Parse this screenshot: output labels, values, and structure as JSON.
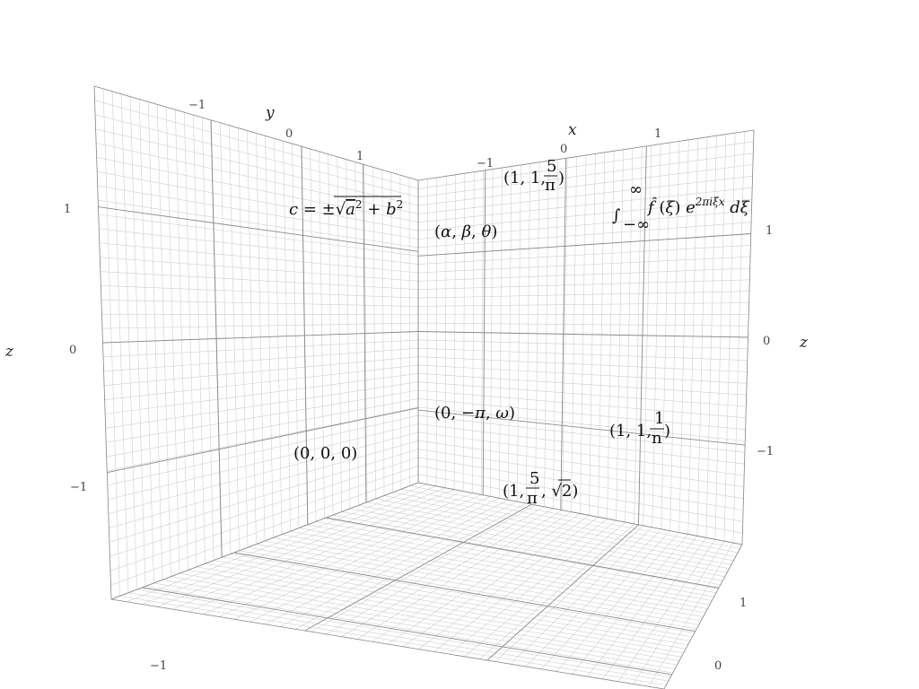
{
  "chart_data": {
    "type": "scatter",
    "projection": "3d",
    "title": "",
    "axes": {
      "x": {
        "label": "x",
        "ticks": [
          "−1",
          "0",
          "1"
        ],
        "range": [
          -1.5,
          1.5
        ]
      },
      "y": {
        "label": "y",
        "ticks": [
          "−1",
          "0",
          "1"
        ],
        "range": [
          -1.5,
          1.5
        ]
      },
      "z": {
        "label": "z",
        "ticks": [
          "1",
          "0",
          "−1"
        ],
        "range": [
          -1.5,
          1.5
        ]
      }
    },
    "floor_ticks": [
      "−1",
      "1",
      "0"
    ],
    "grid": true,
    "grid_color": "#cfcfcf",
    "major_grid_color": "#8a8a8a",
    "text_color": "#111111",
    "annotations": [
      {
        "id": "c-formula",
        "text": "c = ±√(a² + b²)"
      },
      {
        "id": "alpha-beta-theta",
        "text": "(α, β, θ)"
      },
      {
        "id": "one-one-five-pi",
        "text": "(1, 1, 5/π)"
      },
      {
        "id": "fourier",
        "text": "∫_{−∞}^{∞} f̂(ξ) e^{2πiξx} dξ"
      },
      {
        "id": "origin",
        "text": "(0, 0, 0)"
      },
      {
        "id": "zero-minus-pi-omega",
        "text": "(0, −π, ω)"
      },
      {
        "id": "one-one-one-n",
        "text": "(1, 1, 1/n)"
      },
      {
        "id": "one-five-pi-sqrt2",
        "text": "(1, 5/π, √2)"
      }
    ]
  }
}
